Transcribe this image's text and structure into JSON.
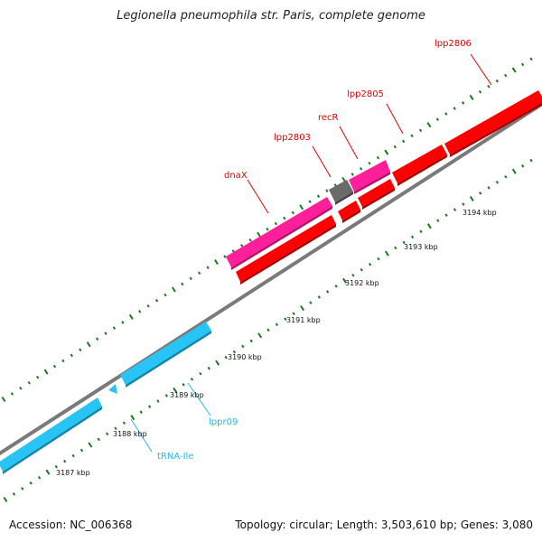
{
  "title": "Legionella pneumophila str. Paris, complete genome",
  "footer": {
    "accession": "Accession: NC_006368",
    "summary": "Topology: circular; Length: 3,503,610 bp; Genes: 3,080"
  },
  "colors": {
    "backbone": "#7a7a7a",
    "tick": "#1a7a1a",
    "gene_red": "#ff0000",
    "gene_pink": "#ff1f9a",
    "gene_gray": "#666666",
    "gene_cyan": "#27c4f5",
    "label_red": "#dd0000",
    "label_cyan": "#1fb8e8"
  },
  "scale_labels": [
    "3187 kbp",
    "3188 kbp",
    "3189 kbp",
    "3190 kbp",
    "3191 kbp",
    "3192 kbp",
    "3193 kbp",
    "3194 kbp"
  ],
  "gene_labels": {
    "lpp2806": "lpp2806",
    "lpp2805": "lpp2805",
    "recR": "recR",
    "lpp2803": "lpp2803",
    "dnaX": "dnaX",
    "lppr09": "lppr09",
    "trna_ile": "tRNA-Ile"
  }
}
